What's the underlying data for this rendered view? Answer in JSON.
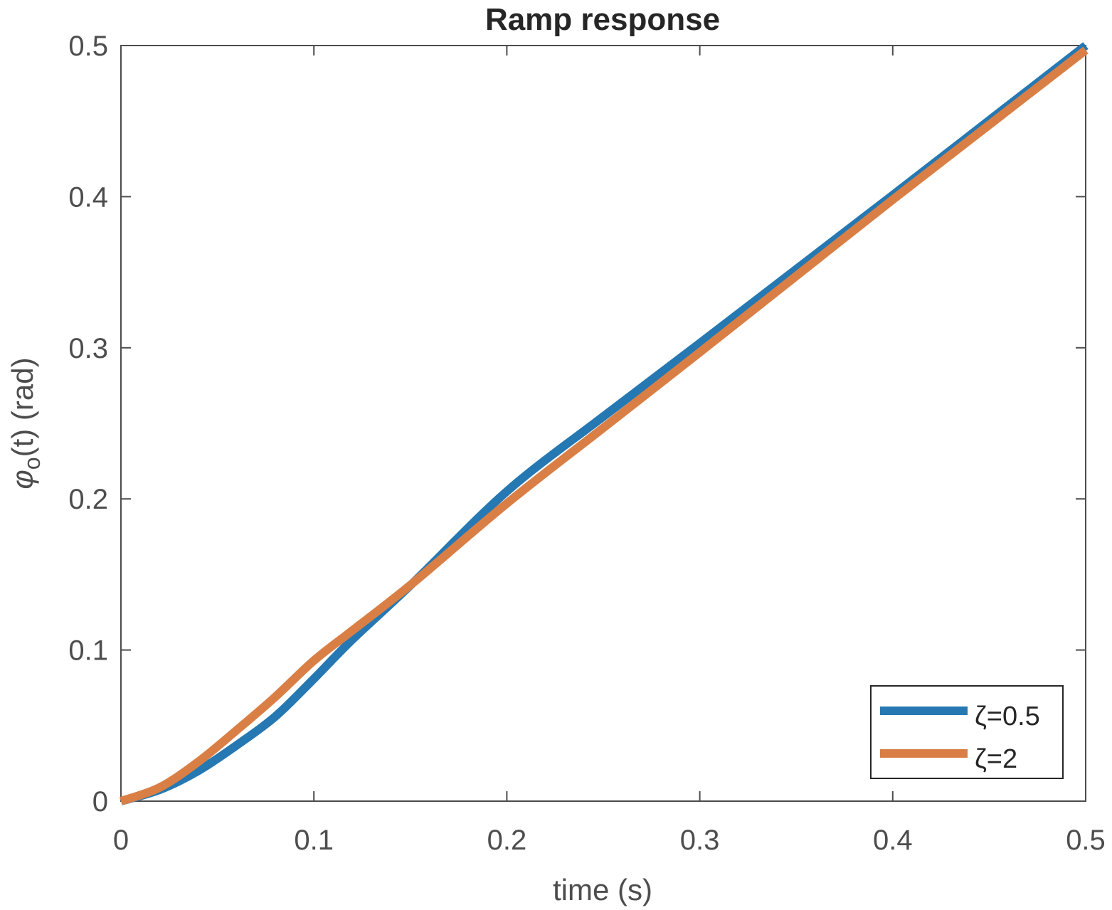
{
  "chart_data": {
    "type": "line",
    "title": "Ramp response",
    "xlabel": "time (s)",
    "ylabel": "(t)  (rad)",
    "ylabel_symbol": "φ",
    "ylabel_subscript": "o",
    "xlim": [
      0,
      0.5
    ],
    "ylim": [
      0,
      0.5
    ],
    "xticks": [
      "0",
      "0.1",
      "0.2",
      "0.3",
      "0.4",
      "0.5"
    ],
    "yticks": [
      "0",
      "0.1",
      "0.2",
      "0.3",
      "0.4",
      "0.5"
    ],
    "grid": false,
    "legend_position": "bottom-right",
    "series": [
      {
        "name": "ζ=0.5",
        "color": "#2678b2",
        "x": [
          0,
          0.02,
          0.04,
          0.06,
          0.08,
          0.1,
          0.12,
          0.151,
          0.2,
          0.25,
          0.3,
          0.35,
          0.4,
          0.45,
          0.5
        ],
        "y": [
          0,
          0.0075,
          0.02,
          0.037,
          0.056,
          0.081,
          0.107,
          0.144,
          0.205,
          0.2545,
          0.303,
          0.352,
          0.401,
          0.4505,
          0.5
        ]
      },
      {
        "name": "ζ=2",
        "color": "#d97f45",
        "x": [
          0,
          0.02,
          0.04,
          0.06,
          0.08,
          0.1,
          0.12,
          0.151,
          0.2,
          0.25,
          0.3,
          0.35,
          0.4,
          0.45,
          0.5
        ],
        "y": [
          0,
          0.009,
          0.026,
          0.047,
          0.069,
          0.093,
          0.113,
          0.144,
          0.197,
          0.247,
          0.297,
          0.3475,
          0.398,
          0.4475,
          0.497
        ]
      }
    ]
  }
}
